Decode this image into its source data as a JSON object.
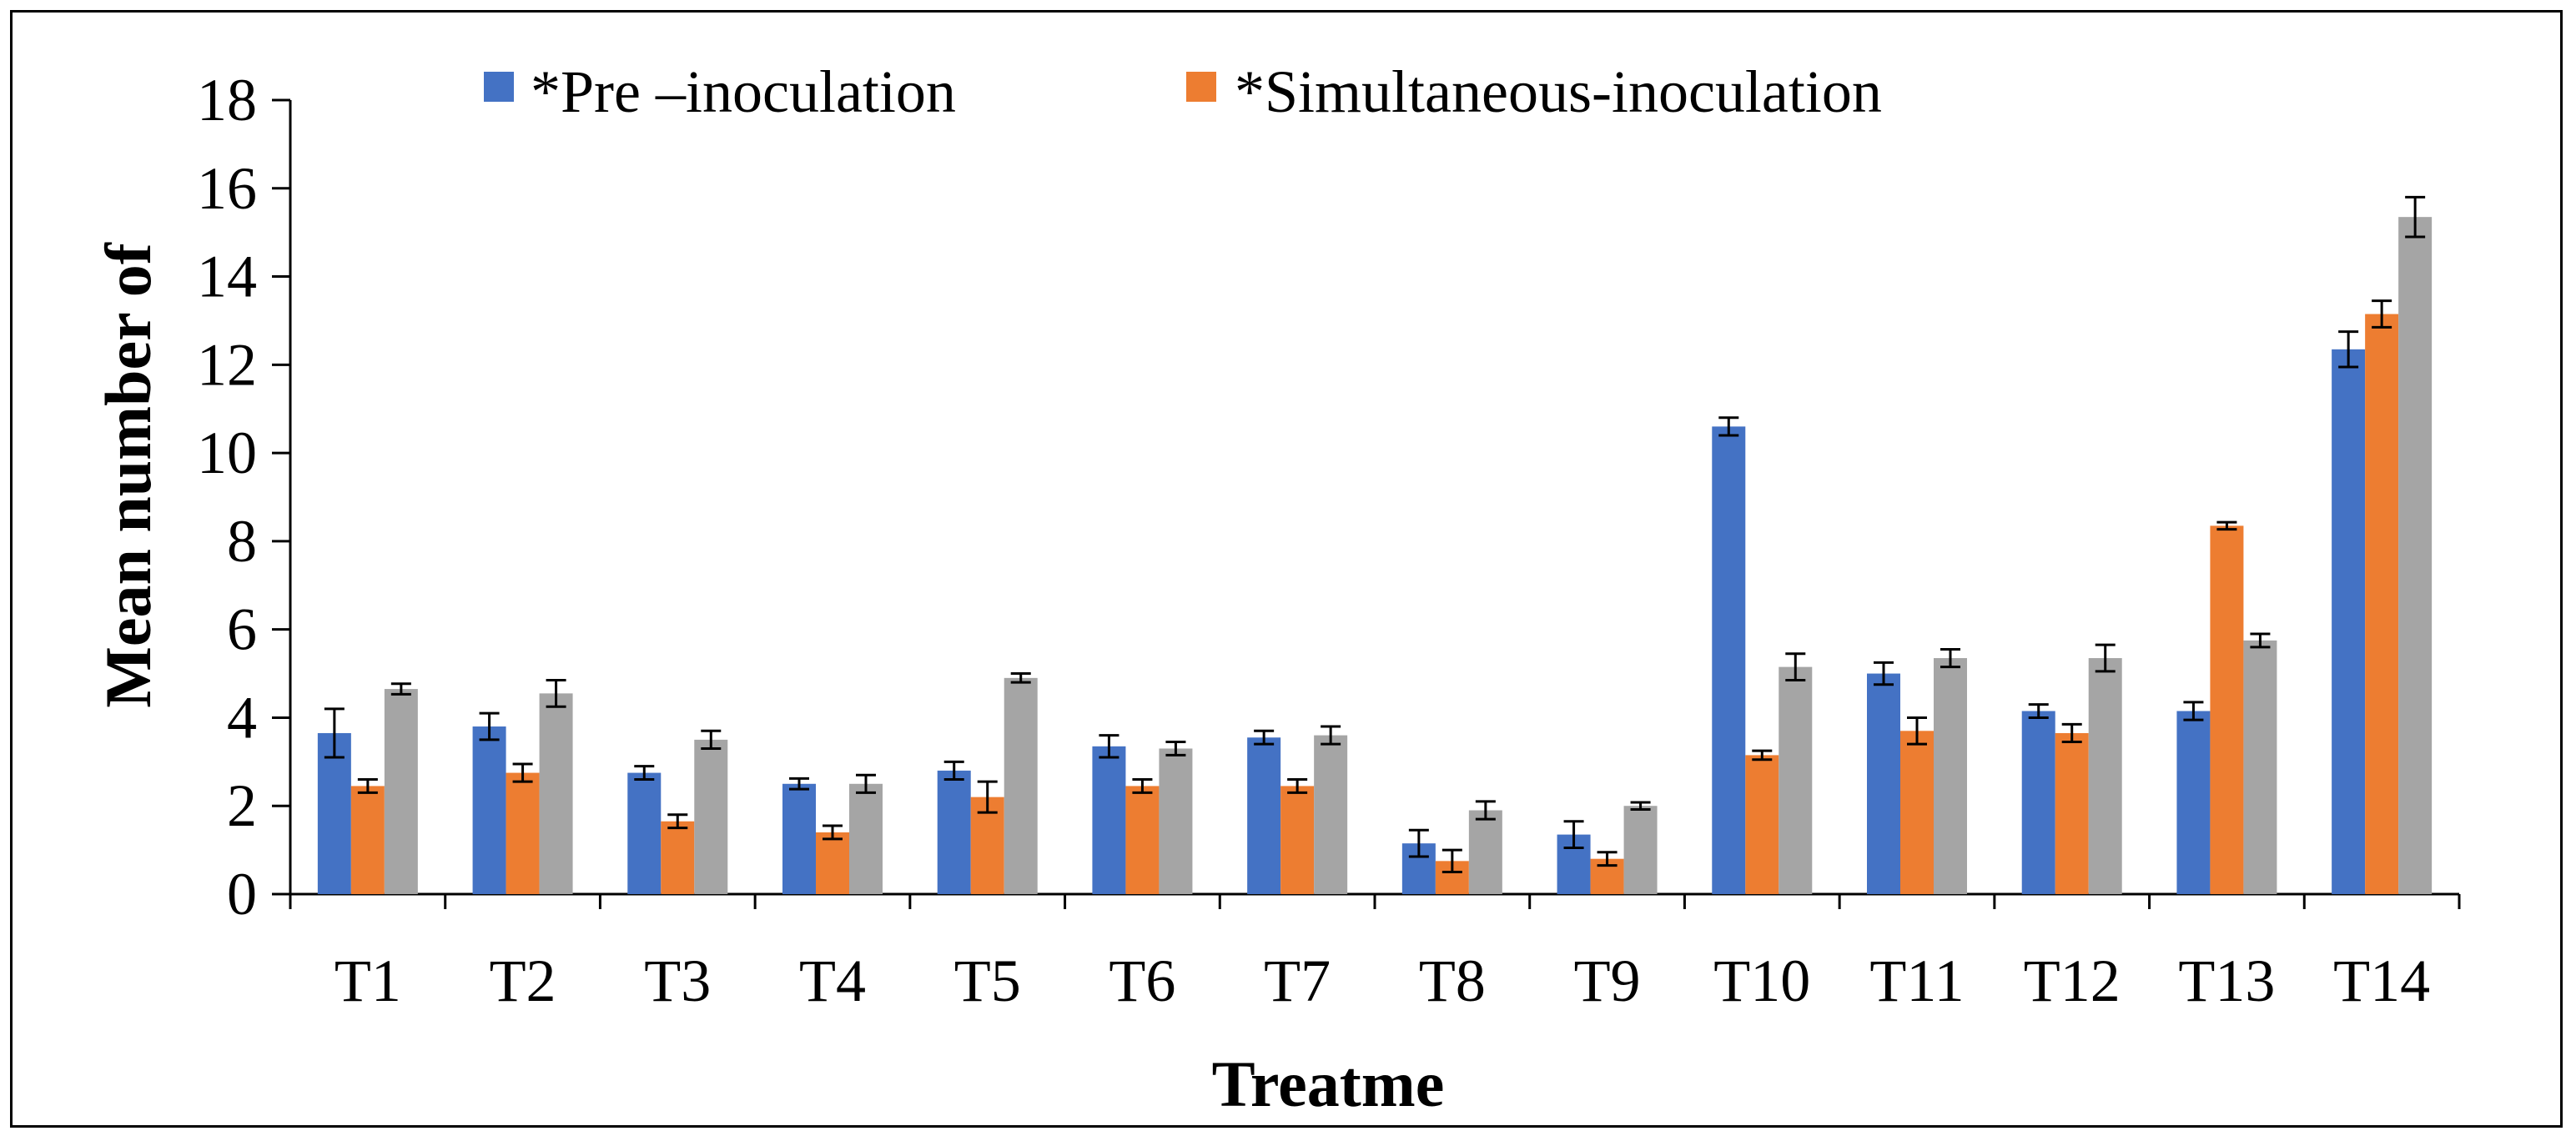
{
  "chart_data": {
    "type": "bar",
    "title": "",
    "xlabel": "Treatme",
    "ylabel": "Mean number of",
    "ylim": [
      0,
      18
    ],
    "yticks": [
      0,
      2,
      4,
      6,
      8,
      10,
      12,
      14,
      16,
      18
    ],
    "grid": false,
    "legend_position": "top",
    "categories": [
      "T1",
      "T2",
      "T3",
      "T4",
      "T5",
      "T6",
      "T7",
      "T8",
      "T9",
      "T10",
      "T11",
      "T12",
      "T13",
      "T14"
    ],
    "series": [
      {
        "name": "*Pre –inoculation",
        "color": "#4472c4",
        "values": [
          3.65,
          3.8,
          2.75,
          2.5,
          2.8,
          3.35,
          3.55,
          1.15,
          1.35,
          10.6,
          5.0,
          4.15,
          4.15,
          12.35
        ],
        "errors": [
          0.55,
          0.3,
          0.15,
          0.12,
          0.2,
          0.25,
          0.15,
          0.3,
          0.3,
          0.2,
          0.25,
          0.15,
          0.2,
          0.4
        ]
      },
      {
        "name": "*Simultaneous-inoculation",
        "color": "#ed7d31",
        "values": [
          2.45,
          2.75,
          1.65,
          1.4,
          2.2,
          2.45,
          2.45,
          0.75,
          0.8,
          3.15,
          3.7,
          3.65,
          8.35,
          13.15
        ],
        "errors": [
          0.15,
          0.2,
          0.15,
          0.15,
          0.35,
          0.15,
          0.15,
          0.25,
          0.15,
          0.1,
          0.3,
          0.2,
          0.08,
          0.3
        ]
      },
      {
        "name": "",
        "color": "#a5a5a5",
        "values": [
          4.65,
          4.55,
          3.5,
          2.5,
          4.9,
          3.3,
          3.6,
          1.9,
          2.0,
          5.15,
          5.35,
          5.35,
          5.75,
          15.35
        ],
        "errors": [
          0.12,
          0.3,
          0.2,
          0.2,
          0.1,
          0.15,
          0.2,
          0.2,
          0.08,
          0.3,
          0.2,
          0.3,
          0.15,
          0.45
        ]
      }
    ]
  }
}
